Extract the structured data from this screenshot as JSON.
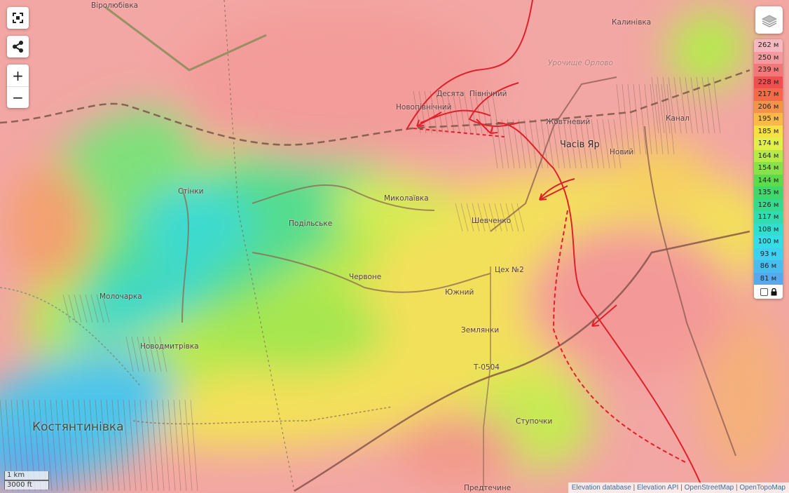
{
  "map": {
    "places": [
      {
        "name": "Віролюбівка",
        "cls": ""
      },
      {
        "name": "Калинівка",
        "cls": ""
      },
      {
        "name": "Урочище Орлово",
        "cls": "faint"
      },
      {
        "name": "Десята",
        "cls": ""
      },
      {
        "name": "Північний",
        "cls": ""
      },
      {
        "name": "Новопівнічний",
        "cls": ""
      },
      {
        "name": "Жовтневий",
        "cls": ""
      },
      {
        "name": "Часів Яр",
        "cls": "mid"
      },
      {
        "name": "Новий",
        "cls": ""
      },
      {
        "name": "Канал",
        "cls": ""
      },
      {
        "name": "Стінки",
        "cls": ""
      },
      {
        "name": "Миколаївка",
        "cls": ""
      },
      {
        "name": "Подільське",
        "cls": ""
      },
      {
        "name": "Шевченко",
        "cls": ""
      },
      {
        "name": "Червоне",
        "cls": ""
      },
      {
        "name": "Цех №2",
        "cls": ""
      },
      {
        "name": "Южний",
        "cls": ""
      },
      {
        "name": "Молочарка",
        "cls": ""
      },
      {
        "name": "Землянки",
        "cls": ""
      },
      {
        "name": "Новодмитрівка",
        "cls": ""
      },
      {
        "name": "Т-0504",
        "cls": ""
      },
      {
        "name": "Ступочки",
        "cls": ""
      },
      {
        "name": "Костянтинівка",
        "cls": "big"
      },
      {
        "name": "Предтечине",
        "cls": ""
      }
    ]
  },
  "controls": {
    "zoom_in": "+",
    "zoom_out": "−",
    "icons": [
      "fullscreen-icon",
      "share-icon",
      "layers-icon",
      "lock-icon"
    ]
  },
  "legend": {
    "items": [
      {
        "label": "262 м",
        "color": "#f6b8bf"
      },
      {
        "label": "250 м",
        "color": "#f49a9f"
      },
      {
        "label": "239 м",
        "color": "#f07878"
      },
      {
        "label": "228 м",
        "color": "#ee5050"
      },
      {
        "label": "217 м",
        "color": "#f36a48"
      },
      {
        "label": "206 м",
        "color": "#f7924a"
      },
      {
        "label": "195 м",
        "color": "#fbb94a"
      },
      {
        "label": "185 м",
        "color": "#f7df48"
      },
      {
        "label": "174 м",
        "color": "#e2ef48"
      },
      {
        "label": "164 м",
        "color": "#b6ea48"
      },
      {
        "label": "154 м",
        "color": "#8ae24a"
      },
      {
        "label": "144 м",
        "color": "#5edb4c"
      },
      {
        "label": "135 м",
        "color": "#3fd86a"
      },
      {
        "label": "126 м",
        "color": "#36da8e"
      },
      {
        "label": "117 м",
        "color": "#33dcb0"
      },
      {
        "label": "108 м",
        "color": "#33ddd0"
      },
      {
        "label": "100 м",
        "color": "#35dde6"
      },
      {
        "label": "93 м",
        "color": "#3ed0ee"
      },
      {
        "label": "86 м",
        "color": "#48bdee"
      },
      {
        "label": "81 м",
        "color": "#55a9ec"
      }
    ]
  },
  "scale": {
    "metric": "1 km",
    "imperial": "3000 ft"
  },
  "attribution": [
    "Elevation database",
    "Elevation API",
    "OpenStreetMap",
    "OpenTopoMap"
  ]
}
